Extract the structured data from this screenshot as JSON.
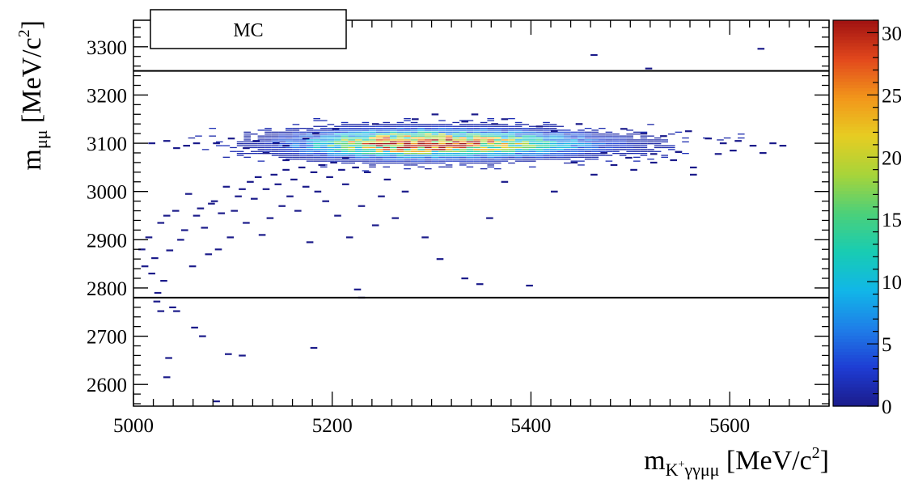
{
  "chart_data": {
    "type": "heatmap",
    "legend_label": "MC",
    "xlabel": {
      "main": "m",
      "sub": "K",
      "sup_small": "+",
      "sub_tail": "γγμμ",
      "unit_pre": "[MeV/c",
      "unit_sup": "2",
      "unit_post": "]"
    },
    "ylabel": {
      "main": "m",
      "sub": "μμ",
      "unit_pre": "[MeV/c",
      "unit_sup": "2",
      "unit_post": "]"
    },
    "xlim": [
      5000,
      5700
    ],
    "ylim": [
      2555,
      3355
    ],
    "xticks": [
      5000,
      5200,
      5400,
      5600
    ],
    "yticks": [
      2600,
      2700,
      2800,
      2900,
      3000,
      3100,
      3200,
      3300
    ],
    "zlim": [
      0,
      31
    ],
    "zticks": [
      0,
      5,
      10,
      15,
      20,
      25,
      30
    ],
    "cut_lines_y": [
      2780,
      3250
    ],
    "bin_width_x": 7,
    "bin_height_y": 4,
    "core": {
      "x_mean": 5282,
      "x_sigma": 58,
      "y_mean": 3096,
      "y_sigma": 16,
      "peak_count": 30
    },
    "sparse_points": [
      [
        5005,
        2880
      ],
      [
        5008,
        2845
      ],
      [
        5012,
        2905
      ],
      [
        5015,
        2830
      ],
      [
        5018,
        2862
      ],
      [
        5021,
        2790
      ],
      [
        5024,
        2935
      ],
      [
        5027,
        2815
      ],
      [
        5030,
        2950
      ],
      [
        5033,
        2878
      ],
      [
        5036,
        2760
      ],
      [
        5039,
        2960
      ],
      [
        5044,
        2900
      ],
      [
        5048,
        2920
      ],
      [
        5052,
        2995
      ],
      [
        5056,
        2845
      ],
      [
        5060,
        2950
      ],
      [
        5064,
        2965
      ],
      [
        5068,
        2925
      ],
      [
        5072,
        2870
      ],
      [
        5075,
        2975
      ],
      [
        5078,
        2980
      ],
      [
        5082,
        2880
      ],
      [
        5085,
        2955
      ],
      [
        5090,
        3010
      ],
      [
        5094,
        2905
      ],
      [
        5098,
        2960
      ],
      [
        5102,
        2990
      ],
      [
        5106,
        3005
      ],
      [
        5110,
        2935
      ],
      [
        5114,
        3020
      ],
      [
        5118,
        2985
      ],
      [
        5122,
        3030
      ],
      [
        5126,
        2910
      ],
      [
        5130,
        3005
      ],
      [
        5134,
        2945
      ],
      [
        5138,
        3035
      ],
      [
        5142,
        3015
      ],
      [
        5146,
        2970
      ],
      [
        5150,
        3045
      ],
      [
        5154,
        2990
      ],
      [
        5158,
        3025
      ],
      [
        5162,
        2960
      ],
      [
        5166,
        3050
      ],
      [
        5170,
        3010
      ],
      [
        5174,
        2895
      ],
      [
        5178,
        3040
      ],
      [
        5182,
        3000
      ],
      [
        5186,
        3055
      ],
      [
        5190,
        2980
      ],
      [
        5194,
        3030
      ],
      [
        5198,
        3060
      ],
      [
        5202,
        2950
      ],
      [
        5206,
        3045
      ],
      [
        5210,
        3015
      ],
      [
        5214,
        2905
      ],
      [
        5220,
        3050
      ],
      [
        5226,
        2970
      ],
      [
        5232,
        3040
      ],
      [
        5240,
        2930
      ],
      [
        5246,
        2990
      ],
      [
        5252,
        3025
      ],
      [
        5260,
        2945
      ],
      [
        5270,
        3000
      ],
      [
        5290,
        2905
      ],
      [
        5305,
        2860
      ],
      [
        5330,
        2820
      ],
      [
        5345,
        2808
      ],
      [
        5355,
        2945
      ],
      [
        5395,
        2805
      ],
      [
        5370,
        3020
      ],
      [
        5420,
        3000
      ],
      [
        5440,
        3060
      ],
      [
        5460,
        3035
      ],
      [
        5480,
        3055
      ],
      [
        5500,
        3045
      ],
      [
        5520,
        3060
      ],
      [
        5540,
        3065
      ],
      [
        5560,
        3050
      ],
      [
        5560,
        3035
      ],
      [
        5024,
        2752
      ],
      [
        5040,
        2752
      ],
      [
        5058,
        2718
      ],
      [
        5066,
        2700
      ],
      [
        5092,
        2663
      ],
      [
        5032,
        2655
      ],
      [
        5106,
        2660
      ],
      [
        5178,
        2676
      ],
      [
        5080,
        2565
      ],
      [
        5020,
        2772
      ],
      [
        5226,
        2780
      ],
      [
        5222,
        2797
      ],
      [
        5030,
        2615
      ],
      [
        5460,
        3283
      ],
      [
        5515,
        3255
      ],
      [
        5628,
        3296
      ],
      [
        5300,
        3160
      ],
      [
        5330,
        3145
      ],
      [
        5370,
        3150
      ],
      [
        5405,
        3135
      ],
      [
        5420,
        3125
      ],
      [
        5445,
        3140
      ],
      [
        5490,
        3130
      ],
      [
        5510,
        3120
      ],
      [
        5530,
        3115
      ],
      [
        5555,
        3125
      ],
      [
        5575,
        3110
      ],
      [
        5590,
        3100
      ],
      [
        5605,
        3105
      ],
      [
        5620,
        3095
      ],
      [
        5640,
        3100
      ],
      [
        5650,
        3095
      ],
      [
        5600,
        3085
      ],
      [
        5585,
        3078
      ],
      [
        5630,
        3080
      ],
      [
        5470,
        3080
      ],
      [
        5520,
        3078
      ],
      [
        5545,
        3082
      ],
      [
        5495,
        3070
      ],
      [
        5050,
        3095
      ],
      [
        5060,
        3100
      ],
      [
        5080,
        3100
      ],
      [
        5095,
        3110
      ],
      [
        5110,
        3090
      ],
      [
        5120,
        3105
      ],
      [
        5140,
        3100
      ],
      [
        5150,
        3095
      ],
      [
        5170,
        3110
      ],
      [
        5030,
        3105
      ],
      [
        5040,
        3090
      ],
      [
        5015,
        3100
      ],
      [
        5180,
        3120
      ],
      [
        5200,
        3130
      ],
      [
        5210,
        3070
      ],
      [
        5150,
        3065
      ],
      [
        5130,
        3080
      ],
      [
        5240,
        3140
      ],
      [
        5280,
        3150
      ],
      [
        5340,
        3160
      ],
      [
        5360,
        3140
      ]
    ]
  },
  "colors": {
    "palette": [
      "#1b1b8a",
      "#1e3cd3",
      "#1f7ee8",
      "#11b6e8",
      "#18ccb3",
      "#4bd07a",
      "#a7d43a",
      "#e6cd22",
      "#f2961b",
      "#e2481c",
      "#a01212"
    ],
    "frame": "#000000",
    "cut_line": "#000000",
    "background": "#ffffff"
  }
}
